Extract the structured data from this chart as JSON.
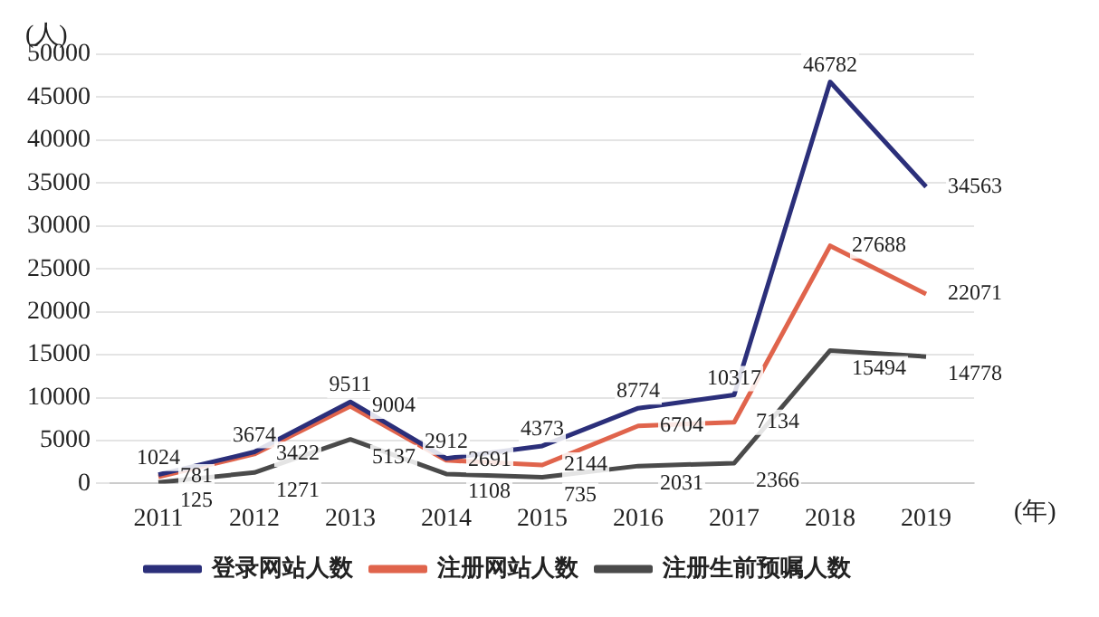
{
  "chart_data": {
    "type": "line",
    "xlabel": "(年)",
    "ylabel": "(人)",
    "categories": [
      "2011",
      "2012",
      "2013",
      "2014",
      "2015",
      "2016",
      "2017",
      "2018",
      "2019"
    ],
    "series": [
      {
        "name": "登录网站人数",
        "color": "#2b2f7a",
        "values": [
          1024,
          3674,
          9511,
          2912,
          4373,
          8774,
          10317,
          46782,
          34563
        ]
      },
      {
        "name": "注册网站人数",
        "color": "#e0644c",
        "values": [
          781,
          3422,
          9004,
          2691,
          2144,
          6704,
          7134,
          27688,
          22071
        ]
      },
      {
        "name": "注册生前预嘱人数",
        "color": "#4a4a4a",
        "values": [
          125,
          1271,
          5137,
          1108,
          735,
          2031,
          2366,
          15494,
          14778
        ]
      }
    ],
    "ylim": [
      0,
      50000
    ],
    "yticks": [
      0,
      5000,
      10000,
      15000,
      20000,
      25000,
      30000,
      35000,
      40000,
      45000,
      50000
    ],
    "grid": "y",
    "legend": "bottom",
    "data_labels": true,
    "marker": "none",
    "line_style": "solid"
  }
}
